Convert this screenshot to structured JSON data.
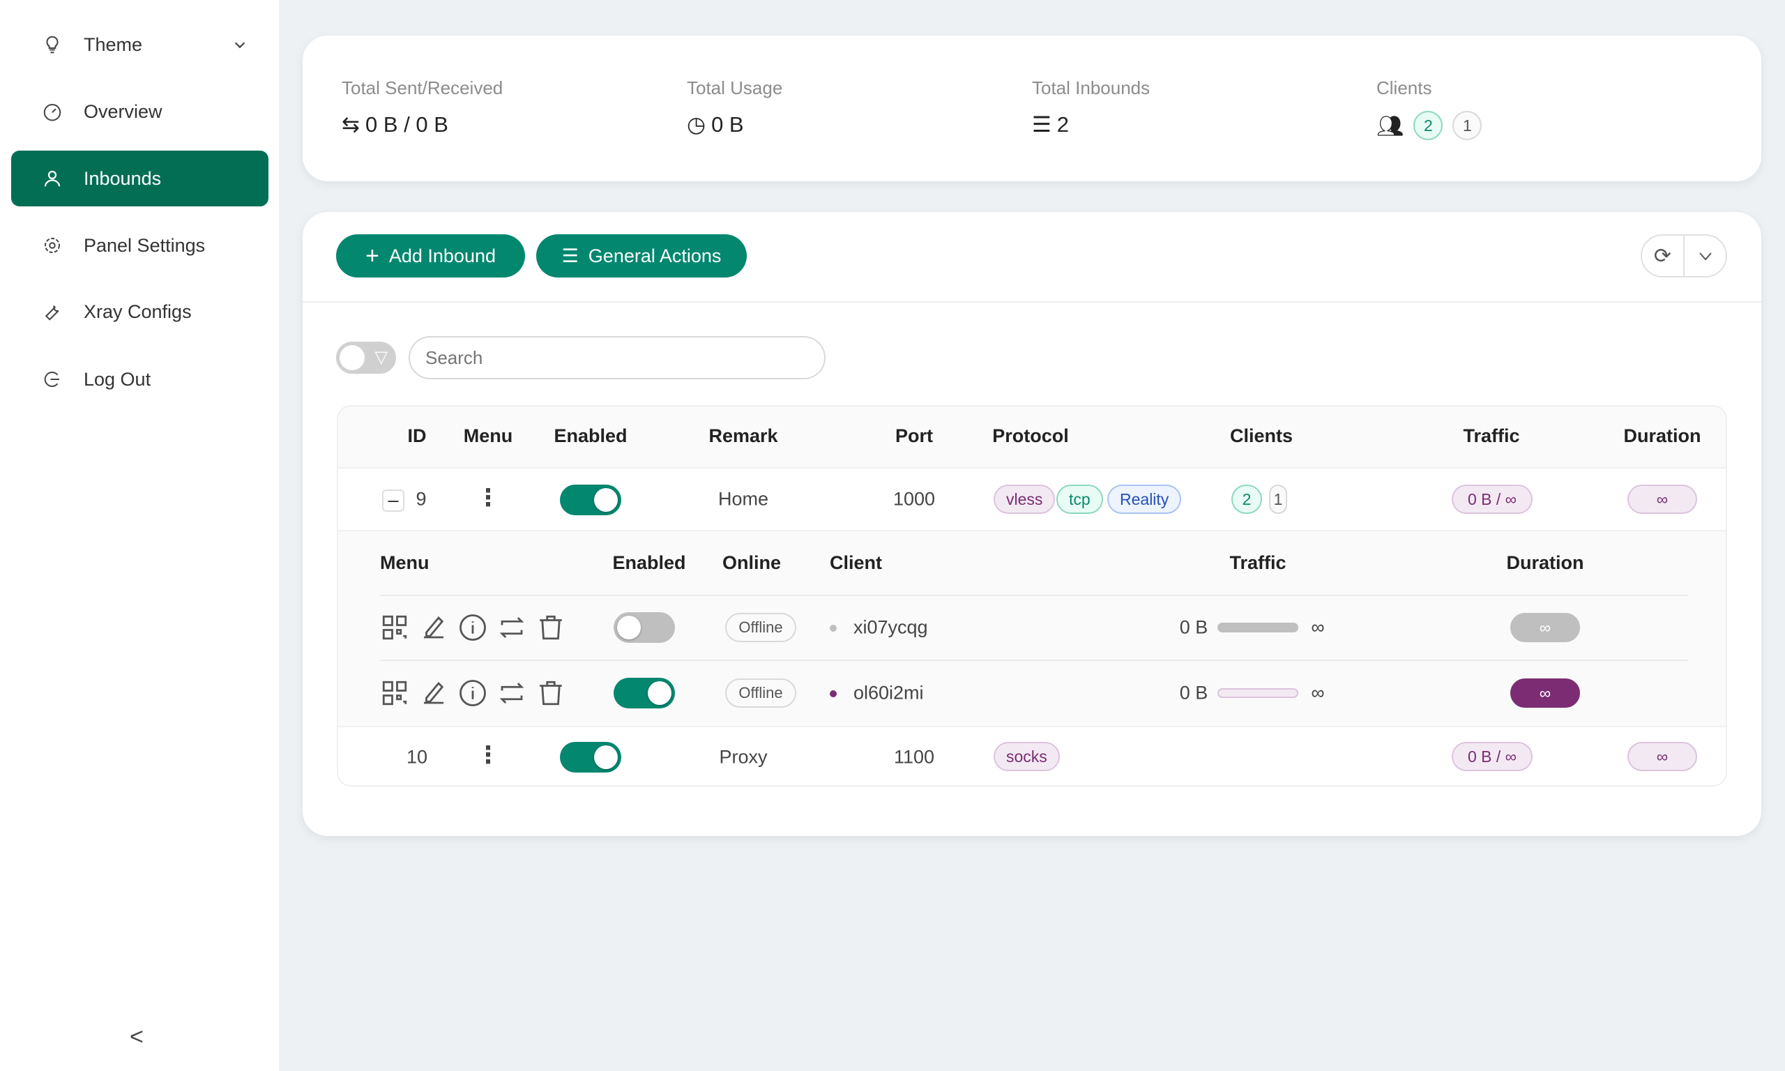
{
  "sidebar": {
    "items": [
      {
        "label": "Theme",
        "icon": "bulb-icon"
      },
      {
        "label": "Overview",
        "icon": "dashboard-icon"
      },
      {
        "label": "Inbounds",
        "icon": "user-icon",
        "active": true
      },
      {
        "label": "Panel Settings",
        "icon": "gear-icon"
      },
      {
        "label": "Xray Configs",
        "icon": "tool-icon"
      },
      {
        "label": "Log Out",
        "icon": "logout-icon"
      }
    ],
    "collapse": "<"
  },
  "summary": {
    "sent_received": {
      "label": "Total Sent/Received",
      "value": "0 B / 0 B"
    },
    "usage": {
      "label": "Total Usage",
      "value": "0 B"
    },
    "inbounds": {
      "label": "Total Inbounds",
      "value": "2"
    },
    "clients": {
      "label": "Clients",
      "active": "2",
      "other": "1"
    }
  },
  "toolbar": {
    "add": "Add Inbound",
    "general": "General Actions"
  },
  "search": {
    "placeholder": "Search"
  },
  "table": {
    "headers": [
      "ID",
      "Menu",
      "Enabled",
      "Remark",
      "Port",
      "Protocol",
      "Clients",
      "Traffic",
      "Duration"
    ],
    "rows": [
      {
        "id": "9",
        "enabled": true,
        "remark": "Home",
        "port": "1000",
        "protocol": [
          "vless",
          "tcp",
          "Reality"
        ],
        "clients_active": "2",
        "clients_other": "1",
        "traffic": "0 B / ∞",
        "duration": "∞"
      },
      {
        "id": "10",
        "enabled": true,
        "remark": "Proxy",
        "port": "1100",
        "protocol": [
          "socks"
        ],
        "traffic": "0 B / ∞",
        "duration": "∞"
      }
    ]
  },
  "clients_table": {
    "headers": [
      "Menu",
      "Enabled",
      "Online",
      "Client",
      "Traffic",
      "Duration"
    ],
    "rows": [
      {
        "enabled": false,
        "online": "Offline",
        "client": "xi07ycqg",
        "traffic": "0 B",
        "limit": "∞",
        "duration": "∞"
      },
      {
        "enabled": true,
        "online": "Offline",
        "client": "ol60i2mi",
        "traffic": "0 B",
        "limit": "∞",
        "duration": "∞"
      }
    ]
  },
  "colors": {
    "accent": "#03876f",
    "active_nav": "#046e55",
    "purple": "#7b2c73"
  }
}
